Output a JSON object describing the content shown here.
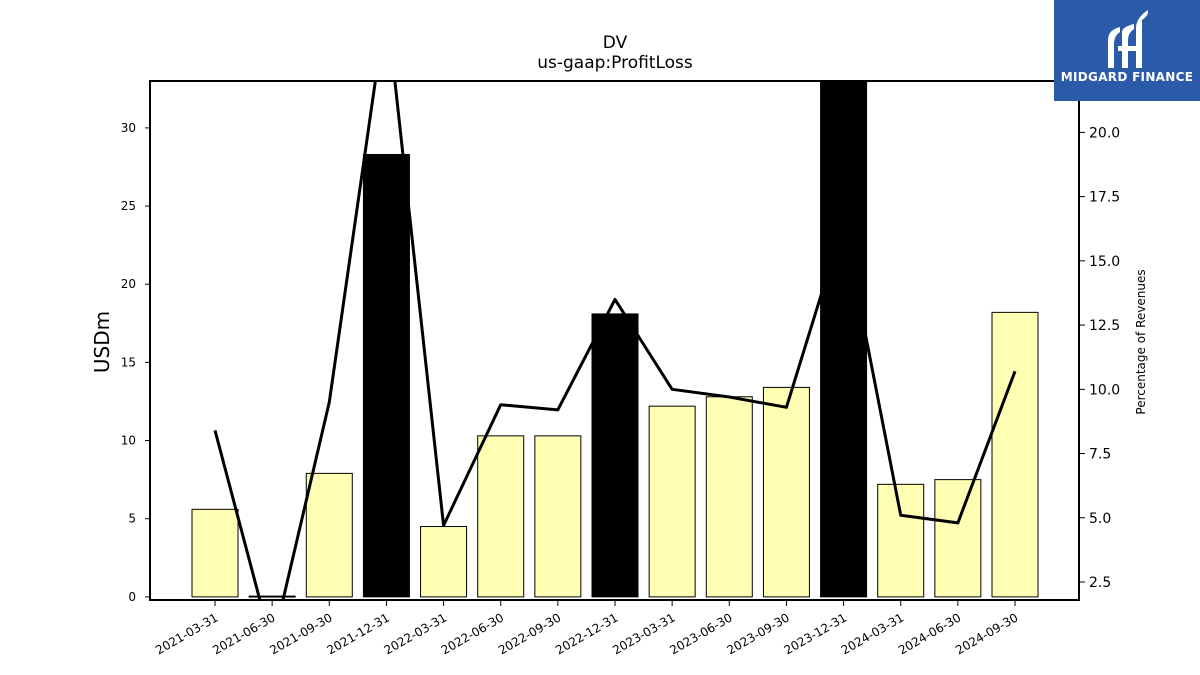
{
  "brand": {
    "name": "MIDGARD FINANCE",
    "color": "#2b5aa8"
  },
  "chart_data": {
    "type": "bar",
    "title": "DV",
    "subtitle": "us-gaap:ProfitLoss",
    "ylabel": "USDm",
    "ylabel_right": "Percentage of Revenues",
    "categories": [
      "2021-03-31",
      "2021-06-30",
      "2021-09-30",
      "2021-12-31",
      "2022-03-31",
      "2022-06-30",
      "2022-09-30",
      "2022-12-31",
      "2023-03-31",
      "2023-06-30",
      "2023-09-30",
      "2023-12-31",
      "2024-03-31",
      "2024-06-30",
      "2024-09-30"
    ],
    "series": [
      {
        "type": "bar",
        "axis": "left",
        "values": [
          5.6,
          0.05,
          7.9,
          28.3,
          4.5,
          10.3,
          10.3,
          18.1,
          12.2,
          12.8,
          13.4,
          33.0,
          7.2,
          7.5,
          18.2
        ],
        "colors": [
          "#ffffb3",
          "#ffffb3",
          "#ffffb3",
          "#000000",
          "#ffffb3",
          "#ffffb3",
          "#ffffb3",
          "#000000",
          "#ffffb3",
          "#ffffb3",
          "#ffffb3",
          "#000000",
          "#ffffb3",
          "#ffffb3",
          "#ffffb3"
        ]
      },
      {
        "type": "line",
        "axis": "right",
        "values": [
          8.4,
          0.0,
          9.5,
          25.0,
          4.7,
          9.4,
          9.2,
          13.5,
          10.0,
          9.7,
          9.3,
          16.5,
          5.1,
          4.8,
          10.7
        ]
      }
    ],
    "ylim": [
      -0.2,
      33
    ],
    "ylim_right": [
      1.8,
      22.0
    ],
    "yticks": [
      0,
      5,
      10,
      15,
      20,
      25,
      30
    ],
    "yticks_right": [
      2.5,
      5.0,
      7.5,
      10.0,
      12.5,
      15.0,
      17.5,
      20.0
    ],
    "grid": false
  }
}
